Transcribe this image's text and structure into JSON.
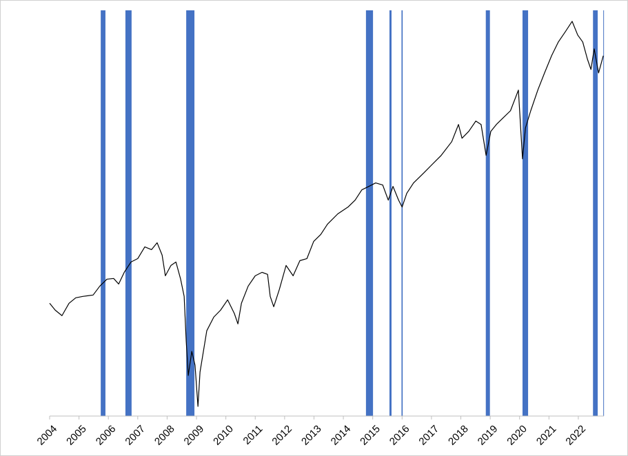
{
  "chart_data": {
    "type": "line",
    "x": [
      2004.0,
      2004.19,
      2004.42,
      2004.66,
      2004.89,
      2005.13,
      2005.48,
      2005.71,
      2005.95,
      2006.18,
      2006.35,
      2006.54,
      2006.77,
      2007.0,
      2007.24,
      2007.47,
      2007.66,
      2007.83,
      2007.94,
      2008.13,
      2008.3,
      2008.46,
      2008.58,
      2008.65,
      2008.72,
      2008.84,
      2008.95,
      2009.05,
      2009.12,
      2009.35,
      2009.59,
      2009.82,
      2010.06,
      2010.29,
      2010.41,
      2010.53,
      2010.76,
      2011.0,
      2011.23,
      2011.42,
      2011.51,
      2011.63,
      2011.82,
      2012.05,
      2012.29,
      2012.52,
      2012.76,
      2012.99,
      2013.23,
      2013.46,
      2013.81,
      2014.16,
      2014.4,
      2014.63,
      2014.87,
      2015.1,
      2015.34,
      2015.53,
      2015.69,
      2015.88,
      2016.0,
      2016.16,
      2016.39,
      2016.75,
      2016.98,
      2017.33,
      2017.69,
      2017.92,
      2018.04,
      2018.27,
      2018.51,
      2018.69,
      2018.86,
      2019.02,
      2019.21,
      2019.45,
      2019.69,
      2019.96,
      2020.1,
      2020.2,
      2020.38,
      2020.62,
      2020.85,
      2021.09,
      2021.32,
      2021.56,
      2021.79,
      2021.98,
      2022.15,
      2022.31,
      2022.43,
      2022.54,
      2022.69,
      2022.85
    ],
    "series": [
      {
        "color": "#000000",
        "values": [
          164,
          154,
          146,
          164,
          172,
          174,
          176,
          189,
          199,
          200,
          192,
          209,
          224,
          229,
          246,
          242,
          252,
          234,
          204,
          219,
          224,
          199,
          174,
          109,
          59,
          94,
          74,
          14,
          64,
          124,
          144,
          154,
          169,
          149,
          134,
          164,
          189,
          204,
          209,
          206,
          174,
          159,
          184,
          219,
          204,
          226,
          229,
          254,
          264,
          279,
          294,
          304,
          314,
          329,
          334,
          339,
          336,
          314,
          334,
          314,
          304,
          324,
          339,
          354,
          364,
          379,
          399,
          424,
          404,
          414,
          429,
          424,
          379,
          414,
          424,
          434,
          444,
          474,
          374,
          419,
          444,
          474,
          499,
          524,
          544,
          559,
          574,
          554,
          544,
          519,
          504,
          534,
          499,
          524
        ]
      }
    ],
    "bands": [
      {
        "start": 2005.74,
        "end": 2005.9
      },
      {
        "start": 2006.58,
        "end": 2006.79
      },
      {
        "start": 2008.65,
        "end": 2008.93
      },
      {
        "start": 2014.77,
        "end": 2015.01
      },
      {
        "start": 2015.57,
        "end": 2015.64
      },
      {
        "start": 2015.98,
        "end": 2016.02
      },
      {
        "start": 2018.85,
        "end": 2018.99
      },
      {
        "start": 2020.1,
        "end": 2020.29
      },
      {
        "start": 2022.5,
        "end": 2022.66
      },
      {
        "start": 2022.85,
        "end": 2022.87
      }
    ],
    "band_color": "#4472c4",
    "xlim": [
      2004,
      2022.87
    ],
    "xticks": [
      2004,
      2005,
      2006,
      2007,
      2008,
      2009,
      2010,
      2011,
      2012,
      2013,
      2014,
      2015,
      2016,
      2017,
      2018,
      2019,
      2020,
      2021,
      2022
    ],
    "ylim": [
      0,
      590
    ]
  }
}
